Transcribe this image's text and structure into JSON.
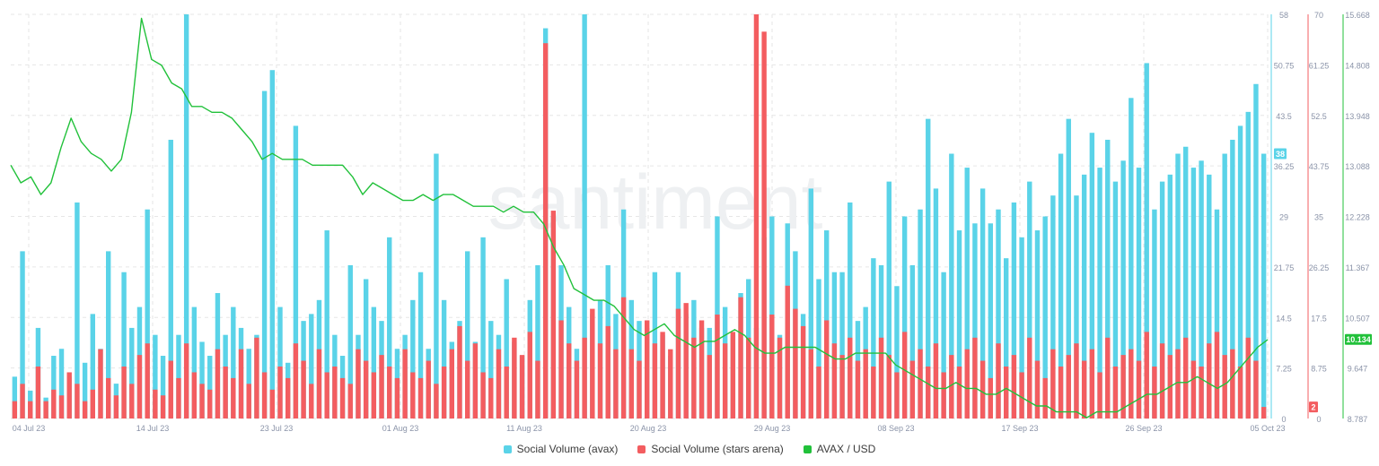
{
  "watermark": "santiment",
  "colors": {
    "avax": "#5ad3e8",
    "stars_arena": "#f35d60",
    "price": "#21c13a",
    "grid": "#e6e6e6",
    "axis_text": "#8a93a8"
  },
  "chart_data": {
    "type": "bar",
    "x_range": [
      "2023-07-03",
      "2023-10-05"
    ],
    "x_ticks": [
      "04 Jul 23",
      "14 Jul 23",
      "23 Jul 23",
      "01 Aug 23",
      "11 Aug 23",
      "20 Aug 23",
      "29 Aug 23",
      "08 Sep 23",
      "17 Sep 23",
      "26 Sep 23",
      "05 Oct 23"
    ],
    "series": [
      {
        "name": "Social Volume (avax)",
        "axis": "left",
        "ylim": [
          0,
          58
        ],
        "ticks": [
          "0",
          "7.25",
          "14.5",
          "21.75",
          "29",
          "36.25",
          "43.5",
          "50.75",
          "58"
        ],
        "current_value": "38",
        "values": [
          6,
          24,
          4,
          13,
          3,
          9,
          10,
          6,
          31,
          8,
          15,
          10,
          24,
          5,
          21,
          13,
          16,
          30,
          12,
          9,
          40,
          12,
          58,
          16,
          11,
          9,
          18,
          12,
          16,
          13,
          10,
          12,
          47,
          50,
          16,
          8,
          42,
          14,
          15,
          17,
          27,
          12,
          9,
          22,
          12,
          20,
          16,
          14,
          26,
          10,
          12,
          17,
          21,
          10,
          38,
          17,
          11,
          14,
          24,
          11,
          26,
          14,
          12,
          20,
          11,
          9,
          17,
          22,
          56,
          29,
          22,
          16,
          10,
          58,
          15,
          17,
          22,
          15,
          30,
          17,
          14,
          13,
          21,
          12,
          9,
          21,
          15,
          17,
          13,
          13,
          29,
          16,
          12,
          18,
          20,
          13,
          26,
          29,
          12,
          28,
          24,
          15,
          33,
          20,
          27,
          21,
          21,
          31,
          14,
          16,
          23,
          22,
          34,
          19,
          29,
          22,
          30,
          43,
          33,
          21,
          38,
          27,
          36,
          28,
          33,
          28,
          30,
          23,
          31,
          26,
          34,
          27,
          29,
          32,
          38,
          43,
          32,
          35,
          41,
          36,
          40,
          34,
          37,
          46,
          36,
          51,
          30,
          34,
          35,
          38,
          39,
          36,
          37,
          35,
          30,
          38,
          40,
          42,
          44,
          48,
          38
        ]
      },
      {
        "name": "Social Volume (stars arena)",
        "axis": "middle",
        "ylim": [
          0,
          70
        ],
        "ticks": [
          "0",
          "8.75",
          "17.5",
          "26.25",
          "35",
          "43.75",
          "52.5",
          "61.25",
          "70"
        ],
        "current_value": "2",
        "values": [
          3,
          6,
          3,
          9,
          3,
          5,
          4,
          8,
          6,
          3,
          5,
          12,
          7,
          4,
          9,
          6,
          11,
          13,
          5,
          4,
          10,
          7,
          13,
          8,
          6,
          5,
          12,
          9,
          7,
          12,
          6,
          14,
          8,
          5,
          9,
          7,
          13,
          10,
          6,
          12,
          8,
          9,
          7,
          6,
          12,
          10,
          8,
          11,
          9,
          7,
          12,
          8,
          7,
          10,
          6,
          9,
          12,
          16,
          10,
          13,
          8,
          7,
          12,
          9,
          14,
          11,
          15,
          10,
          65,
          36,
          17,
          13,
          10,
          14,
          19,
          13,
          16,
          12,
          21,
          12,
          10,
          17,
          13,
          15,
          12,
          19,
          20,
          14,
          17,
          11,
          18,
          13,
          15,
          21,
          14,
          70,
          67,
          18,
          14,
          23,
          19,
          16,
          12,
          9,
          17,
          13,
          11,
          14,
          10,
          12,
          9,
          14,
          11,
          8,
          15,
          10,
          12,
          9,
          13,
          8,
          11,
          9,
          12,
          14,
          10,
          7,
          13,
          9,
          11,
          8,
          14,
          10,
          7,
          12,
          9,
          11,
          13,
          10,
          12,
          8,
          14,
          9,
          11,
          12,
          10,
          15,
          9,
          13,
          11,
          12,
          14,
          10,
          9,
          13,
          15,
          11,
          12,
          9,
          14,
          10,
          2
        ]
      },
      {
        "name": "AVAX / USD",
        "axis": "right",
        "ylim": [
          8.787,
          15.668
        ],
        "ticks": [
          "8.787",
          "9.647",
          "10.507",
          "11.367",
          "12.228",
          "13.088",
          "13.948",
          "14.808",
          "15.668"
        ],
        "current_value": "10.134",
        "values": [
          13.1,
          12.8,
          12.9,
          12.6,
          12.8,
          13.4,
          13.9,
          13.5,
          13.3,
          13.2,
          13.0,
          13.2,
          14.0,
          15.6,
          14.9,
          14.8,
          14.5,
          14.4,
          14.1,
          14.1,
          14.0,
          14.0,
          13.9,
          13.7,
          13.5,
          13.2,
          13.3,
          13.2,
          13.2,
          13.2,
          13.1,
          13.1,
          13.1,
          13.1,
          12.9,
          12.6,
          12.8,
          12.7,
          12.6,
          12.5,
          12.5,
          12.6,
          12.5,
          12.6,
          12.6,
          12.5,
          12.4,
          12.4,
          12.4,
          12.3,
          12.4,
          12.3,
          12.3,
          12.1,
          11.7,
          11.4,
          11.0,
          10.9,
          10.8,
          10.8,
          10.7,
          10.5,
          10.3,
          10.2,
          10.3,
          10.4,
          10.2,
          10.1,
          10.0,
          10.1,
          10.1,
          10.2,
          10.3,
          10.2,
          10.0,
          9.9,
          9.9,
          10.0,
          10.0,
          10.0,
          10.0,
          9.9,
          9.8,
          9.8,
          9.9,
          9.9,
          9.9,
          9.9,
          9.7,
          9.6,
          9.5,
          9.4,
          9.3,
          9.3,
          9.4,
          9.3,
          9.3,
          9.2,
          9.2,
          9.3,
          9.2,
          9.1,
          9.0,
          9.0,
          8.9,
          8.9,
          8.9,
          8.8,
          8.9,
          8.9,
          8.9,
          9.0,
          9.1,
          9.2,
          9.2,
          9.3,
          9.4,
          9.4,
          9.5,
          9.4,
          9.3,
          9.4,
          9.6,
          9.8,
          10.0,
          10.13
        ]
      }
    ]
  },
  "legend": [
    {
      "label": "Social Volume (avax)",
      "color_key": "avax"
    },
    {
      "label": "Social Volume (stars arena)",
      "color_key": "stars_arena"
    },
    {
      "label": "AVAX / USD",
      "color_key": "price"
    }
  ]
}
